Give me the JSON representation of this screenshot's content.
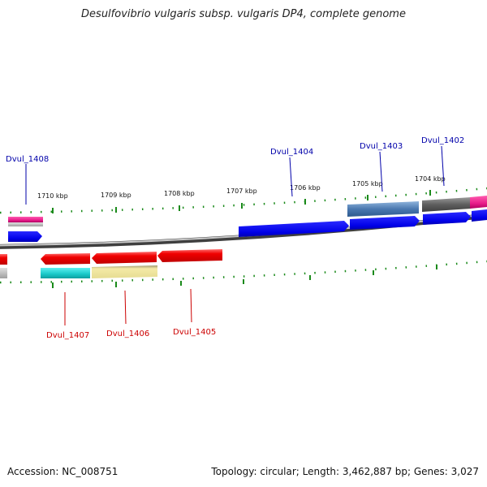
{
  "title": "Desulfovibrio vulgaris subsp. vulgaris DP4, complete genome",
  "accession_label": "Accession: NC_008751",
  "summary_label": "Topology: circular; Length: 3,462,887 bp; Genes: 3,027",
  "colors": {
    "backbone": "#808080",
    "tick": "#1a8a1a",
    "forward_gene": "#0000ee",
    "reverse_gene": "#ee0000",
    "forward_label": "#0000aa",
    "reverse_label": "#cc0000",
    "steelblue_feature": "#4a78b0",
    "gray_feature": "#606060",
    "pink_feature": "#e81c8a",
    "cyan_feature": "#18c8c8",
    "khaki_feature": "#ece29a",
    "silver_feature": "#b0b0b0"
  },
  "ruler_labels": [
    "1710 kbp",
    "1709 kbp",
    "1708 kbp",
    "1707 kbp",
    "1706 kbp",
    "1705 kbp",
    "1704 kbp"
  ],
  "gene_labels": [
    {
      "name": "Dvul_1408",
      "strand": "forward"
    },
    {
      "name": "Dvul_1404",
      "strand": "forward"
    },
    {
      "name": "Dvul_1403",
      "strand": "forward"
    },
    {
      "name": "Dvul_1402",
      "strand": "forward"
    },
    {
      "name": "Dvul_1407",
      "strand": "reverse"
    },
    {
      "name": "Dvul_1406",
      "strand": "reverse"
    },
    {
      "name": "Dvul_1405",
      "strand": "reverse"
    }
  ]
}
